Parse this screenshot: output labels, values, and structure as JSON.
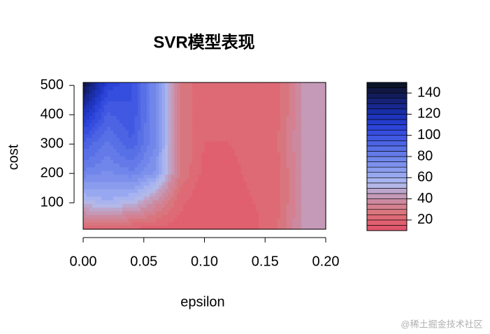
{
  "chart_data": {
    "type": "filled-contour",
    "title": "SVR模型表现",
    "x_label": "epsilon",
    "y_label": "cost",
    "x": [
      0,
      0.02,
      0.04,
      0.06,
      0.08,
      0.1,
      0.12,
      0.14,
      0.16,
      0.18,
      0.2
    ],
    "y": [
      10,
      110,
      210,
      310,
      410,
      510
    ],
    "z": [
      [
        20,
        20,
        18,
        18,
        17,
        15,
        15,
        18,
        25,
        40,
        42
      ],
      [
        55,
        60,
        55,
        40,
        22,
        15,
        15,
        20,
        22,
        40,
        42
      ],
      [
        80,
        75,
        80,
        70,
        30,
        18,
        18,
        22,
        22,
        40,
        42
      ],
      [
        95,
        85,
        95,
        75,
        30,
        20,
        20,
        22,
        25,
        40,
        42
      ],
      [
        120,
        95,
        100,
        75,
        30,
        20,
        20,
        22,
        22,
        40,
        42
      ],
      [
        145,
        110,
        100,
        75,
        30,
        20,
        20,
        22,
        22,
        40,
        42
      ]
    ],
    "xlim": [
      0,
      0.2
    ],
    "ylim": [
      10,
      510
    ],
    "xticks": [
      {
        "value": 0,
        "label": "0.00"
      },
      {
        "value": 0.05,
        "label": "0.05"
      },
      {
        "value": 0.1,
        "label": "0.10"
      },
      {
        "value": 0.15,
        "label": "0.15"
      },
      {
        "value": 0.2,
        "label": "0.20"
      }
    ],
    "yticks": [
      100,
      200,
      300,
      400,
      500
    ],
    "levels": [
      10,
      15,
      20,
      25,
      30,
      35,
      40,
      45,
      50,
      55,
      60,
      65,
      70,
      75,
      80,
      85,
      90,
      95,
      100,
      105,
      110,
      115,
      120,
      125,
      130,
      135,
      140,
      145,
      150
    ],
    "colors": [
      "#e0566d",
      "#e0606f",
      "#de6a76",
      "#d8767e",
      "#d48090",
      "#cc8aa0",
      "#c49ab8",
      "#bca6cc",
      "#b4b8e8",
      "#a8b4f0",
      "#98a8f0",
      "#8a9cee",
      "#7c90ec",
      "#7086ea",
      "#647ae8",
      "#5870e6",
      "#4c64e4",
      "#4058e2",
      "#364ede",
      "#2c44d8",
      "#243ccc",
      "#1e34bc",
      "#1a2ea8",
      "#182890",
      "#152276",
      "#121c5c",
      "#101842",
      "#0c1428"
    ],
    "legend_ticks": [
      20,
      40,
      60,
      80,
      100,
      120,
      140
    ]
  },
  "watermark": "@稀土掘金技术社区"
}
